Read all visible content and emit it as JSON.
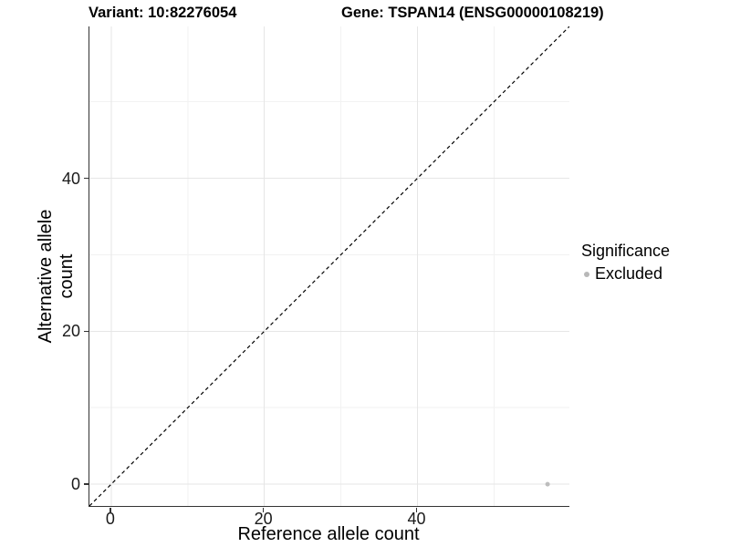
{
  "chart_data": {
    "type": "scatter",
    "titles": {
      "left": "Variant: 10:82276054",
      "right": "Gene: TSPAN14 (ENSG00000108219)"
    },
    "xlabel": "Reference allele count",
    "ylabel": "Alternative allele count",
    "x_ticks": [
      0,
      20,
      40
    ],
    "y_ticks": [
      0,
      20,
      40
    ],
    "x_minor_ticks": [
      10,
      30,
      50
    ],
    "y_minor_ticks": [
      10,
      30,
      50
    ],
    "xlim": [
      0,
      57
    ],
    "ylim": [
      0,
      57
    ],
    "grid": true,
    "reference_line": {
      "type": "identity",
      "slope": 1,
      "intercept": 0,
      "linetype": "dashed",
      "color": "#000000"
    },
    "series": [
      {
        "name": "Excluded",
        "color": "#bdbdbd",
        "points": [
          {
            "x": 57,
            "y": 0
          }
        ]
      }
    ],
    "legend": {
      "title": "Significance",
      "position": "right",
      "items": [
        {
          "label": "Excluded",
          "color": "#b8b8b8"
        }
      ]
    },
    "colors": {
      "axis_line": "#333333",
      "grid_major": "#e6e6e6",
      "grid_minor": "#f2f2f2",
      "tick_text": "#1a1a1a"
    }
  }
}
